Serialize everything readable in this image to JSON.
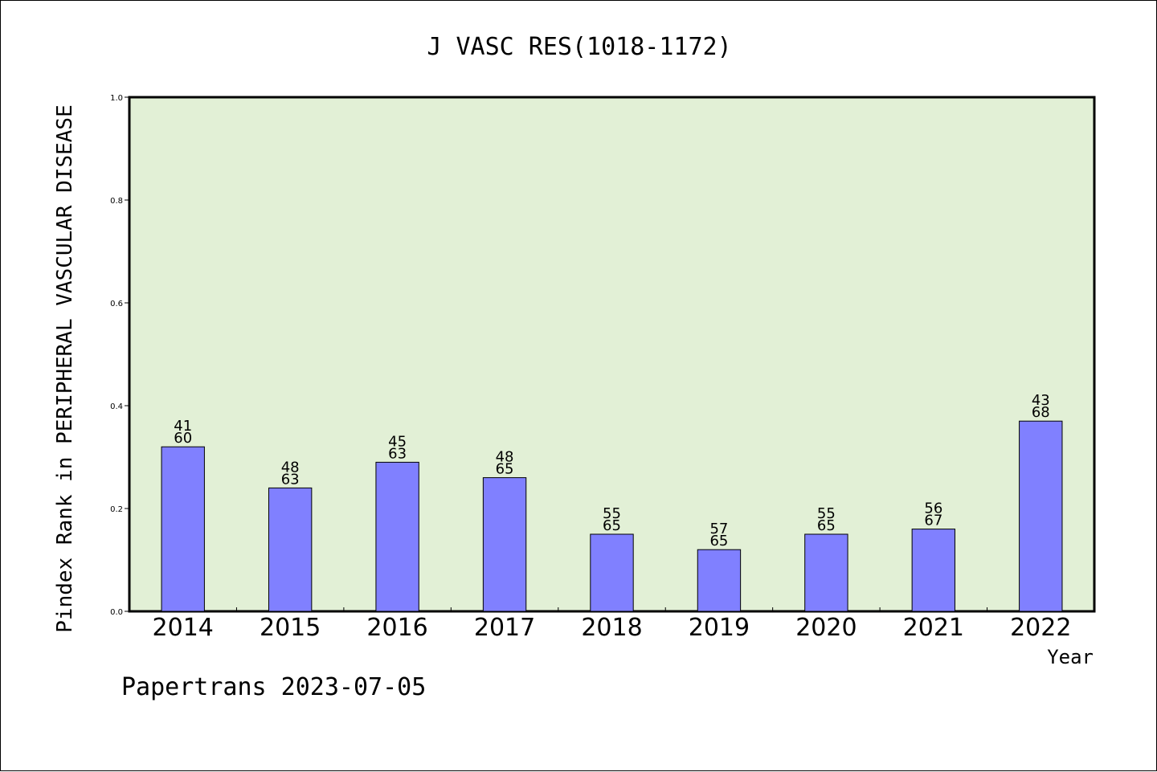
{
  "chart_data": {
    "type": "bar",
    "title": "J VASC RES(1018-1172)",
    "xlabel": "Year",
    "ylabel": "Pindex Rank in PERIPHERAL VASCULAR DISEASE",
    "ylim": [
      0,
      1.0
    ],
    "yticks": [
      "0.0",
      "0.2",
      "0.4",
      "0.6",
      "0.8",
      "1.0"
    ],
    "categories": [
      "2014",
      "2015",
      "2016",
      "2017",
      "2018",
      "2019",
      "2020",
      "2021",
      "2022"
    ],
    "values": [
      0.32,
      0.24,
      0.29,
      0.26,
      0.15,
      0.12,
      0.15,
      0.16,
      0.37
    ],
    "label_top": [
      "41",
      "48",
      "45",
      "48",
      "55",
      "57",
      "55",
      "56",
      "43"
    ],
    "label_bottom": [
      "60",
      "63",
      "63",
      "65",
      "65",
      "65",
      "65",
      "67",
      "68"
    ],
    "grid": false,
    "colors": {
      "plot_bg": "#e2f0d6",
      "bar": "#8080ff",
      "bar_edge": "#000000"
    }
  },
  "footer": "Papertrans 2023-07-05"
}
